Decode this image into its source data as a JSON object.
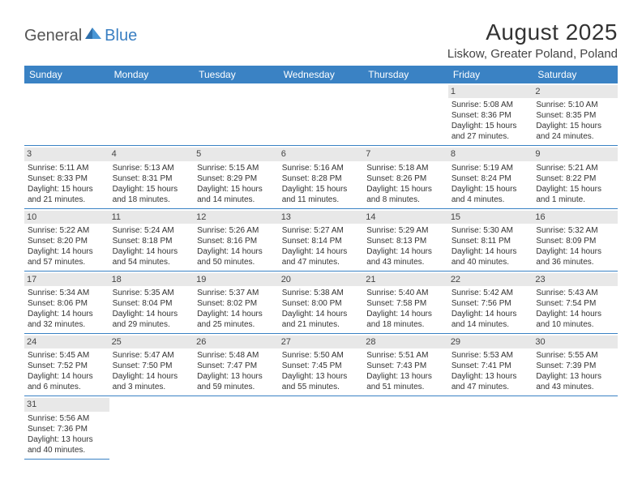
{
  "logo": {
    "general": "General",
    "blue": "Blue"
  },
  "title": "August 2025",
  "location": "Liskow, Greater Poland, Poland",
  "colors": {
    "header_bg": "#3a82c4",
    "header_text": "#ffffff",
    "daynum_bg": "#e8e8e8",
    "border": "#3a82c4",
    "text": "#333333"
  },
  "days_of_week": [
    "Sunday",
    "Monday",
    "Tuesday",
    "Wednesday",
    "Thursday",
    "Friday",
    "Saturday"
  ],
  "weeks": [
    [
      null,
      null,
      null,
      null,
      null,
      {
        "n": "1",
        "sr": "Sunrise: 5:08 AM",
        "ss": "Sunset: 8:36 PM",
        "d1": "Daylight: 15 hours",
        "d2": "and 27 minutes."
      },
      {
        "n": "2",
        "sr": "Sunrise: 5:10 AM",
        "ss": "Sunset: 8:35 PM",
        "d1": "Daylight: 15 hours",
        "d2": "and 24 minutes."
      }
    ],
    [
      {
        "n": "3",
        "sr": "Sunrise: 5:11 AM",
        "ss": "Sunset: 8:33 PM",
        "d1": "Daylight: 15 hours",
        "d2": "and 21 minutes."
      },
      {
        "n": "4",
        "sr": "Sunrise: 5:13 AM",
        "ss": "Sunset: 8:31 PM",
        "d1": "Daylight: 15 hours",
        "d2": "and 18 minutes."
      },
      {
        "n": "5",
        "sr": "Sunrise: 5:15 AM",
        "ss": "Sunset: 8:29 PM",
        "d1": "Daylight: 15 hours",
        "d2": "and 14 minutes."
      },
      {
        "n": "6",
        "sr": "Sunrise: 5:16 AM",
        "ss": "Sunset: 8:28 PM",
        "d1": "Daylight: 15 hours",
        "d2": "and 11 minutes."
      },
      {
        "n": "7",
        "sr": "Sunrise: 5:18 AM",
        "ss": "Sunset: 8:26 PM",
        "d1": "Daylight: 15 hours",
        "d2": "and 8 minutes."
      },
      {
        "n": "8",
        "sr": "Sunrise: 5:19 AM",
        "ss": "Sunset: 8:24 PM",
        "d1": "Daylight: 15 hours",
        "d2": "and 4 minutes."
      },
      {
        "n": "9",
        "sr": "Sunrise: 5:21 AM",
        "ss": "Sunset: 8:22 PM",
        "d1": "Daylight: 15 hours",
        "d2": "and 1 minute."
      }
    ],
    [
      {
        "n": "10",
        "sr": "Sunrise: 5:22 AM",
        "ss": "Sunset: 8:20 PM",
        "d1": "Daylight: 14 hours",
        "d2": "and 57 minutes."
      },
      {
        "n": "11",
        "sr": "Sunrise: 5:24 AM",
        "ss": "Sunset: 8:18 PM",
        "d1": "Daylight: 14 hours",
        "d2": "and 54 minutes."
      },
      {
        "n": "12",
        "sr": "Sunrise: 5:26 AM",
        "ss": "Sunset: 8:16 PM",
        "d1": "Daylight: 14 hours",
        "d2": "and 50 minutes."
      },
      {
        "n": "13",
        "sr": "Sunrise: 5:27 AM",
        "ss": "Sunset: 8:14 PM",
        "d1": "Daylight: 14 hours",
        "d2": "and 47 minutes."
      },
      {
        "n": "14",
        "sr": "Sunrise: 5:29 AM",
        "ss": "Sunset: 8:13 PM",
        "d1": "Daylight: 14 hours",
        "d2": "and 43 minutes."
      },
      {
        "n": "15",
        "sr": "Sunrise: 5:30 AM",
        "ss": "Sunset: 8:11 PM",
        "d1": "Daylight: 14 hours",
        "d2": "and 40 minutes."
      },
      {
        "n": "16",
        "sr": "Sunrise: 5:32 AM",
        "ss": "Sunset: 8:09 PM",
        "d1": "Daylight: 14 hours",
        "d2": "and 36 minutes."
      }
    ],
    [
      {
        "n": "17",
        "sr": "Sunrise: 5:34 AM",
        "ss": "Sunset: 8:06 PM",
        "d1": "Daylight: 14 hours",
        "d2": "and 32 minutes."
      },
      {
        "n": "18",
        "sr": "Sunrise: 5:35 AM",
        "ss": "Sunset: 8:04 PM",
        "d1": "Daylight: 14 hours",
        "d2": "and 29 minutes."
      },
      {
        "n": "19",
        "sr": "Sunrise: 5:37 AM",
        "ss": "Sunset: 8:02 PM",
        "d1": "Daylight: 14 hours",
        "d2": "and 25 minutes."
      },
      {
        "n": "20",
        "sr": "Sunrise: 5:38 AM",
        "ss": "Sunset: 8:00 PM",
        "d1": "Daylight: 14 hours",
        "d2": "and 21 minutes."
      },
      {
        "n": "21",
        "sr": "Sunrise: 5:40 AM",
        "ss": "Sunset: 7:58 PM",
        "d1": "Daylight: 14 hours",
        "d2": "and 18 minutes."
      },
      {
        "n": "22",
        "sr": "Sunrise: 5:42 AM",
        "ss": "Sunset: 7:56 PM",
        "d1": "Daylight: 14 hours",
        "d2": "and 14 minutes."
      },
      {
        "n": "23",
        "sr": "Sunrise: 5:43 AM",
        "ss": "Sunset: 7:54 PM",
        "d1": "Daylight: 14 hours",
        "d2": "and 10 minutes."
      }
    ],
    [
      {
        "n": "24",
        "sr": "Sunrise: 5:45 AM",
        "ss": "Sunset: 7:52 PM",
        "d1": "Daylight: 14 hours",
        "d2": "and 6 minutes."
      },
      {
        "n": "25",
        "sr": "Sunrise: 5:47 AM",
        "ss": "Sunset: 7:50 PM",
        "d1": "Daylight: 14 hours",
        "d2": "and 3 minutes."
      },
      {
        "n": "26",
        "sr": "Sunrise: 5:48 AM",
        "ss": "Sunset: 7:47 PM",
        "d1": "Daylight: 13 hours",
        "d2": "and 59 minutes."
      },
      {
        "n": "27",
        "sr": "Sunrise: 5:50 AM",
        "ss": "Sunset: 7:45 PM",
        "d1": "Daylight: 13 hours",
        "d2": "and 55 minutes."
      },
      {
        "n": "28",
        "sr": "Sunrise: 5:51 AM",
        "ss": "Sunset: 7:43 PM",
        "d1": "Daylight: 13 hours",
        "d2": "and 51 minutes."
      },
      {
        "n": "29",
        "sr": "Sunrise: 5:53 AM",
        "ss": "Sunset: 7:41 PM",
        "d1": "Daylight: 13 hours",
        "d2": "and 47 minutes."
      },
      {
        "n": "30",
        "sr": "Sunrise: 5:55 AM",
        "ss": "Sunset: 7:39 PM",
        "d1": "Daylight: 13 hours",
        "d2": "and 43 minutes."
      }
    ],
    [
      {
        "n": "31",
        "sr": "Sunrise: 5:56 AM",
        "ss": "Sunset: 7:36 PM",
        "d1": "Daylight: 13 hours",
        "d2": "and 40 minutes."
      },
      null,
      null,
      null,
      null,
      null,
      null
    ]
  ]
}
